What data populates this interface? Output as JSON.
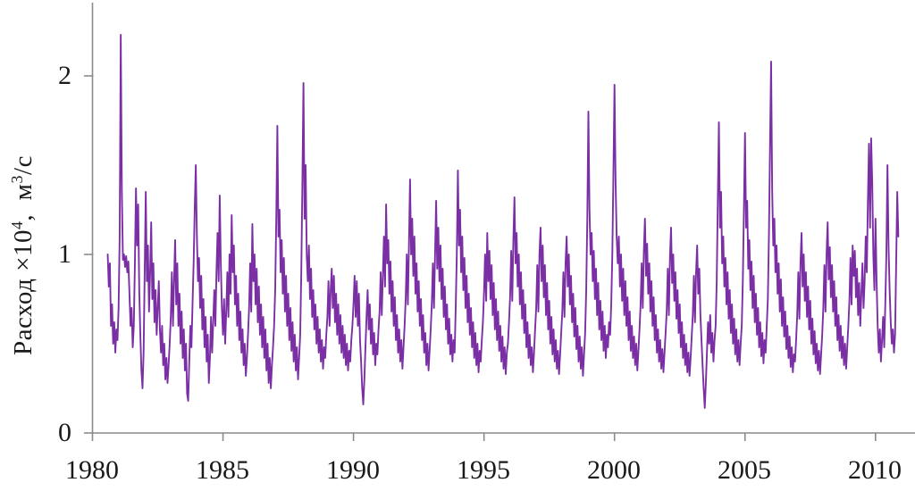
{
  "chart_data": {
    "type": "line",
    "title": "",
    "xlabel": "",
    "ylabel": "Расход ×10⁴, м³/с",
    "ylabel_parts": [
      "Расход ×10",
      "4",
      ",  м",
      "3",
      "/с"
    ],
    "x_ticks": [
      1980,
      1985,
      1990,
      1995,
      2000,
      2005,
      2010
    ],
    "x_tick_labels": [
      "1980",
      "1985",
      "1990",
      "1995",
      "2000",
      "2005",
      "2010"
    ],
    "y_ticks": [
      0,
      1,
      2
    ],
    "y_tick_labels": [
      "0",
      "1",
      "2"
    ],
    "xlim": [
      1980,
      2011.5
    ],
    "ylim": [
      0,
      2.41
    ],
    "grid": false,
    "legend": "none",
    "line_color": "#7B2FA5",
    "axis_color": "#8a8a8a",
    "text_color": "#1a1a1a",
    "series": [
      {
        "name": "Расход",
        "start_x": 1980.5833,
        "samples_per_year": 24,
        "values": [
          1.0,
          0.82,
          0.95,
          0.6,
          0.72,
          0.5,
          0.62,
          0.45,
          0.58,
          0.52,
          0.7,
          1.1,
          2.23,
          1.35,
          0.97,
          1.0,
          0.93,
          0.99,
          0.9,
          0.96,
          0.78,
          0.6,
          0.7,
          0.48,
          0.6,
          0.95,
          1.37,
          1.05,
          1.28,
          0.8,
          0.55,
          0.35,
          0.25,
          0.45,
          0.9,
          1.35,
          0.85,
          1.05,
          0.68,
          0.9,
          1.18,
          0.75,
          0.95,
          0.62,
          0.8,
          0.55,
          0.7,
          0.85,
          0.58,
          0.45,
          0.6,
          0.38,
          0.5,
          0.3,
          0.42,
          0.28,
          0.38,
          0.5,
          0.65,
          0.9,
          0.6,
          0.85,
          1.08,
          0.72,
          0.95,
          0.6,
          0.78,
          0.5,
          0.68,
          0.42,
          0.58,
          0.35,
          0.5,
          0.22,
          0.18,
          0.4,
          0.6,
          0.48,
          0.72,
          0.95,
          1.25,
          1.5,
          1.1,
          0.85,
          0.98,
          0.7,
          0.88,
          0.58,
          0.75,
          0.48,
          0.65,
          0.4,
          0.55,
          0.28,
          0.42,
          0.65,
          0.45,
          0.62,
          0.8,
          0.6,
          0.9,
          1.12,
          0.85,
          1.33,
          0.95,
          0.7,
          0.55,
          0.75,
          0.5,
          0.68,
          0.9,
          0.65,
          1.0,
          0.78,
          1.22,
          0.9,
          1.05,
          0.72,
          0.88,
          0.6,
          0.78,
          0.52,
          0.68,
          0.45,
          0.58,
          0.38,
          0.5,
          0.32,
          0.42,
          0.55,
          0.7,
          0.95,
          0.68,
          1.17,
          0.85,
          1.0,
          0.72,
          0.92,
          0.62,
          0.82,
          0.55,
          0.72,
          0.48,
          0.65,
          0.42,
          0.58,
          0.35,
          0.5,
          0.28,
          0.42,
          0.25,
          0.38,
          0.48,
          0.6,
          0.8,
          1.2,
          1.72,
          1.1,
          1.25,
          0.9,
          1.08,
          0.78,
          0.98,
          0.68,
          0.88,
          0.6,
          0.78,
          0.52,
          0.7,
          0.46,
          0.62,
          0.4,
          0.55,
          0.35,
          0.48,
          0.3,
          0.42,
          0.55,
          0.9,
          1.4,
          1.96,
          1.2,
          1.5,
          1.0,
          0.85,
          1.05,
          0.75,
          0.92,
          0.65,
          0.8,
          0.58,
          0.72,
          0.5,
          0.65,
          0.45,
          0.58,
          0.4,
          0.52,
          0.36,
          0.48,
          0.42,
          0.55,
          0.65,
          0.85,
          0.6,
          0.8,
          0.92,
          0.7,
          0.88,
          0.62,
          0.78,
          0.55,
          0.72,
          0.5,
          0.66,
          0.45,
          0.6,
          0.42,
          0.55,
          0.38,
          0.5,
          0.35,
          0.46,
          0.4,
          0.52,
          0.6,
          0.72,
          0.88,
          0.65,
          0.85,
          0.6,
          0.78,
          0.52,
          0.4,
          0.25,
          0.16,
          0.3,
          0.48,
          0.65,
          0.8,
          0.58,
          0.72,
          0.5,
          0.64,
          0.44,
          0.56,
          0.38,
          0.5,
          0.44,
          0.58,
          0.68,
          0.9,
          0.66,
          0.88,
          1.1,
          0.82,
          1.28,
          0.95,
          1.08,
          0.78,
          0.96,
          0.68,
          0.85,
          0.6,
          0.76,
          0.52,
          0.66,
          0.45,
          0.58,
          0.4,
          0.52,
          0.36,
          0.48,
          0.6,
          0.75,
          1.0,
          0.72,
          1.05,
          1.42,
          1.0,
          1.2,
          0.88,
          1.1,
          0.78,
          0.95,
          0.68,
          0.85,
          0.6,
          0.75,
          0.52,
          0.66,
          0.45,
          0.56,
          0.38,
          0.5,
          0.35,
          0.46,
          0.58,
          0.72,
          0.95,
          0.7,
          1.0,
          1.3,
          0.92,
          1.15,
          0.85,
          1.05,
          0.75,
          0.92,
          0.65,
          0.82,
          0.58,
          0.72,
          0.5,
          0.64,
          0.44,
          0.55,
          0.4,
          0.52,
          0.45,
          0.7,
          1.0,
          1.47,
          1.05,
          1.25,
          0.9,
          1.1,
          0.8,
          0.98,
          0.7,
          0.88,
          0.62,
          0.78,
          0.55,
          0.7,
          0.48,
          0.62,
          0.42,
          0.56,
          0.38,
          0.5,
          0.34,
          0.46,
          0.4,
          0.52,
          0.62,
          0.78,
          1.0,
          0.74,
          1.12,
          0.85,
          1.02,
          0.75,
          0.94,
          0.66,
          0.84,
          0.58,
          0.75,
          0.52,
          0.68,
          0.46,
          0.6,
          0.4,
          0.54,
          0.36,
          0.48,
          0.33,
          0.45,
          0.5,
          0.62,
          0.76,
          1.02,
          0.74,
          1.08,
          1.32,
          0.95,
          1.12,
          0.82,
          1.0,
          0.72,
          0.9,
          0.64,
          0.8,
          0.56,
          0.72,
          0.48,
          0.62,
          0.42,
          0.55,
          0.38,
          0.48,
          0.34,
          0.45,
          0.58,
          0.7,
          0.94,
          0.68,
          1.0,
          1.15,
          0.85,
          1.05,
          0.76,
          0.94,
          0.66,
          0.84,
          0.58,
          0.74,
          0.5,
          0.65,
          0.44,
          0.58,
          0.4,
          0.52,
          0.36,
          0.46,
          0.33,
          0.44,
          0.56,
          0.68,
          0.9,
          0.65,
          0.95,
          1.1,
          0.82,
          1.0,
          0.72,
          0.88,
          0.62,
          0.78,
          0.54,
          0.7,
          0.47,
          0.6,
          0.4,
          0.54,
          0.36,
          0.48,
          0.32,
          0.44,
          0.56,
          0.8,
          1.2,
          1.8,
          1.25,
          1.0,
          1.12,
          0.85,
          1.02,
          0.75,
          0.92,
          0.66,
          0.84,
          0.58,
          0.74,
          0.52,
          0.68,
          0.46,
          0.6,
          0.42,
          0.55,
          0.48,
          0.62,
          0.55,
          0.72,
          1.0,
          1.45,
          1.95,
          1.4,
          1.1,
          0.95,
          1.1,
          0.82,
          1.0,
          0.74,
          0.92,
          0.66,
          0.85,
          0.6,
          0.76,
          0.52,
          0.68,
          0.46,
          0.6,
          0.42,
          0.54,
          0.38,
          0.5,
          0.35,
          0.46,
          0.58,
          0.72,
          0.95,
          0.7,
          1.02,
          1.2,
          0.88,
          1.06,
          0.78,
          0.95,
          0.68,
          0.85,
          0.6,
          0.76,
          0.52,
          0.66,
          0.45,
          0.58,
          0.4,
          0.52,
          0.36,
          0.47,
          0.34,
          0.45,
          0.56,
          0.68,
          0.92,
          0.66,
          0.98,
          1.15,
          0.84,
          1.0,
          0.74,
          0.9,
          0.64,
          0.8,
          0.56,
          0.72,
          0.48,
          0.62,
          0.42,
          0.55,
          0.38,
          0.5,
          0.34,
          0.45,
          0.32,
          0.42,
          0.54,
          0.66,
          0.88,
          0.62,
          0.9,
          1.05,
          0.78,
          0.92,
          0.66,
          0.52,
          0.38,
          0.25,
          0.14,
          0.28,
          0.45,
          0.62,
          0.5,
          0.66,
          0.45,
          0.56,
          0.4,
          0.52,
          0.6,
          0.85,
          1.3,
          1.74,
          1.15,
          1.35,
          0.95,
          1.1,
          0.82,
          0.98,
          0.72,
          0.9,
          0.64,
          0.8,
          0.56,
          0.72,
          0.5,
          0.64,
          0.44,
          0.58,
          0.4,
          0.52,
          0.38,
          0.5,
          0.6,
          0.85,
          1.25,
          1.68,
          1.15,
          1.3,
          0.92,
          1.08,
          0.8,
          0.96,
          0.7,
          0.88,
          0.62,
          0.78,
          0.55,
          0.7,
          0.48,
          0.62,
          0.43,
          0.56,
          0.39,
          0.52,
          0.45,
          0.6,
          0.75,
          1.1,
          1.6,
          2.08,
          1.35,
          1.05,
          1.2,
          0.9,
          1.05,
          0.78,
          0.95,
          0.68,
          0.86,
          0.6,
          0.76,
          0.54,
          0.68,
          0.47,
          0.6,
          0.42,
          0.54,
          0.37,
          0.48,
          0.34,
          0.44,
          0.4,
          0.52,
          0.66,
          0.9,
          0.64,
          0.95,
          1.12,
          0.82,
          1.0,
          0.74,
          0.9,
          0.65,
          0.82,
          0.58,
          0.74,
          0.5,
          0.64,
          0.44,
          0.57,
          0.39,
          0.5,
          0.35,
          0.46,
          0.33,
          0.44,
          0.55,
          0.7,
          0.94,
          0.68,
          1.0,
          1.18,
          0.86,
          1.04,
          0.76,
          0.94,
          0.68,
          0.85,
          0.6,
          0.76,
          0.52,
          0.66,
          0.46,
          0.6,
          0.42,
          0.54,
          0.38,
          0.5,
          0.36,
          0.48,
          0.6,
          0.74,
          0.98,
          0.72,
          1.05,
          0.88,
          1.02,
          0.76,
          0.92,
          0.66,
          0.84,
          0.6,
          0.78,
          0.95,
          0.7,
          0.85,
          1.1,
          0.9,
          1.3,
          1.62,
          1.15,
          1.65,
          1.4,
          1.0,
          0.8,
          1.2,
          0.85,
          0.6,
          0.45,
          0.58,
          0.4,
          0.52,
          0.65,
          0.48,
          0.72,
          1.0,
          1.5,
          1.05,
          0.8,
          0.62,
          0.5,
          0.58,
          0.45,
          0.55,
          0.95,
          1.35,
          1.1
        ]
      }
    ]
  }
}
